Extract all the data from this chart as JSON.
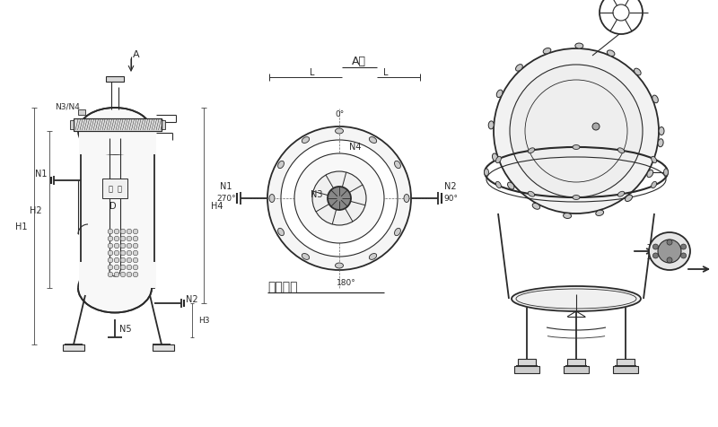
{
  "bg_color": "#ffffff",
  "line_color": "#2a2a2a",
  "lw": 0.8,
  "lw2": 1.3,
  "labels": {
    "A_label": "A面",
    "A_arrow": "A",
    "N1": "N1",
    "N2": "N2",
    "N3": "N3",
    "N4": "N4",
    "N5": "N5",
    "N3N4": "N3/N4",
    "H1": "H1",
    "H2": "H2",
    "H3": "H3",
    "H4": "H4",
    "D": "D",
    "L": "L",
    "deg0": "0°",
    "deg90": "90°",
    "deg180": "180°",
    "deg270": "270°",
    "mingpai": "銓牌方位"
  }
}
